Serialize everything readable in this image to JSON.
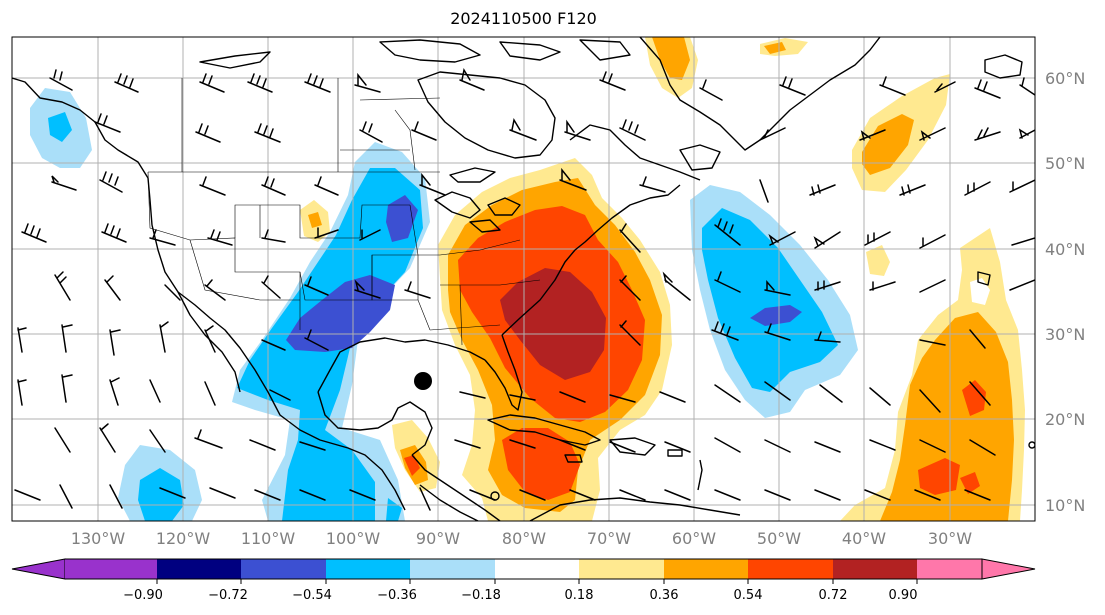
{
  "title": "2024110500 F120",
  "colors": {
    "background": "#ffffff",
    "axis_text": "#808080",
    "grid": "#b0b0b0",
    "coast": "#000000",
    "cbar_bins": [
      "#9932cc",
      "#000080",
      "#3c50d2",
      "#00bfff",
      "#aadff9",
      "#ffffff",
      "#ffe990",
      "#ffa500",
      "#ff4500",
      "#b22222",
      "#ff77aa"
    ]
  },
  "lat_ticks": [
    "60°N",
    "50°N",
    "40°N",
    "30°N",
    "20°N",
    "10°N"
  ],
  "lon_ticks": [
    "130°W",
    "120°W",
    "110°W",
    "100°W",
    "90°W",
    "80°W",
    "70°W",
    "60°W",
    "50°W",
    "40°W",
    "30°W"
  ],
  "colorbar": {
    "labels": [
      "−0.90",
      "−0.72",
      "−0.54",
      "−0.36",
      "−0.18",
      "0.18",
      "0.36",
      "0.54",
      "0.72",
      "0.90"
    ],
    "extend": "both"
  },
  "map_extent": {
    "lon_min": -137.5,
    "lon_max": -17.5,
    "lat_min": 8,
    "lat_max": 65
  },
  "marker": {
    "name": "storm-center-dot",
    "lon": -91,
    "lat": 24.5
  }
}
